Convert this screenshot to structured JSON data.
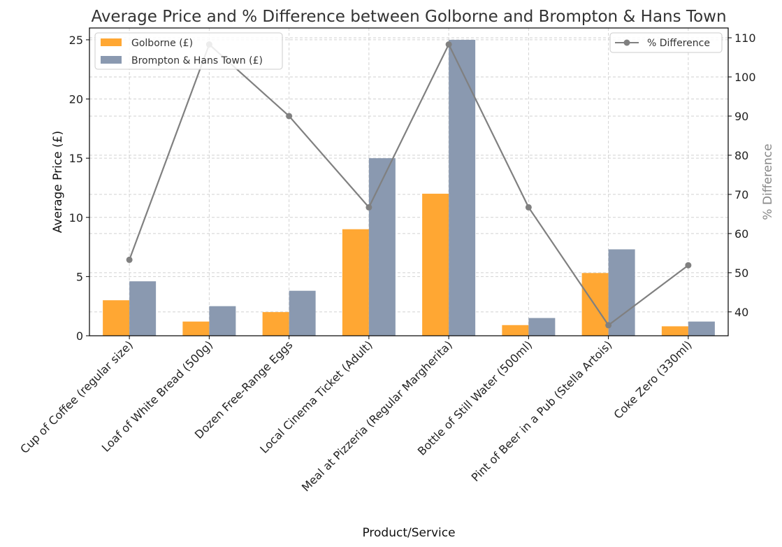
{
  "chart_data": {
    "type": "bar",
    "title": "Average Price and % Difference between Golborne and Brompton & Hans Town",
    "xlabel": "Product/Service",
    "ylabel": "Average Price (£)",
    "y2label": "% Difference",
    "ylim": [
      0,
      26
    ],
    "y2lim": [
      33.9,
      112.5
    ],
    "yticks": [
      0,
      5,
      10,
      15,
      20,
      25
    ],
    "y2ticks": [
      40,
      50,
      60,
      70,
      80,
      90,
      100,
      110
    ],
    "grid": true,
    "categories": [
      "Cup of Coffee (regular size)",
      "Loaf of White Bread (500g)",
      "Dozen Free-Range Eggs",
      "Local Cinema Ticket (Adult)",
      "Meal at Pizzeria (Regular Margherita)",
      "Bottle of Still Water (500ml)",
      "Pint of Beer in a Pub (Stella Artois)",
      "Coke Zero (330ml)"
    ],
    "series": [
      {
        "name": "Golborne (£)",
        "type": "bar",
        "axis": "left",
        "color": "#FFA733",
        "values": [
          3.0,
          1.2,
          2.0,
          9.0,
          12.0,
          0.9,
          5.3,
          0.8
        ]
      },
      {
        "name": "Brompton & Hans Town (£)",
        "type": "bar",
        "axis": "left",
        "color": "#8A99B0",
        "values": [
          4.6,
          2.5,
          3.8,
          15.0,
          25.0,
          1.5,
          7.3,
          1.2
        ]
      },
      {
        "name": "% Difference",
        "type": "line",
        "axis": "right",
        "color": "#808080",
        "values": [
          53.3,
          108.3,
          90.0,
          66.7,
          108.3,
          66.7,
          36.6,
          51.9
        ]
      }
    ],
    "legend_left_position": "top-left",
    "legend_right_position": "top-right"
  }
}
